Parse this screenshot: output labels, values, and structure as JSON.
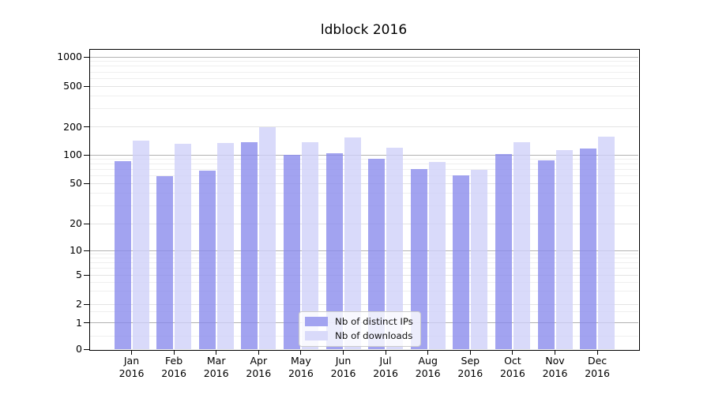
{
  "title": "ldblock 2016",
  "chart_data": {
    "type": "bar",
    "title": "ldblock 2016",
    "categories": [
      "Jan 2016",
      "Feb 2016",
      "Mar 2016",
      "Apr 2016",
      "May 2016",
      "Jun 2016",
      "Jul 2016",
      "Aug 2016",
      "Sep 2016",
      "Oct 2016",
      "Nov 2016",
      "Dec 2016"
    ],
    "series": [
      {
        "name": "Nb of distinct IPs",
        "color": "#a2a3f0",
        "values": [
          85,
          60,
          68,
          138,
          100,
          103,
          90,
          71,
          61,
          102,
          87,
          118
        ]
      },
      {
        "name": "Nb of downloads",
        "color": "#d9dafa",
        "values": [
          142,
          131,
          135,
          200,
          137,
          153,
          119,
          84,
          70,
          138,
          113,
          156
        ]
      }
    ],
    "xlabel": "",
    "ylabel": "",
    "y_ticks": [
      0,
      1,
      2,
      5,
      10,
      20,
      50,
      100,
      200,
      500,
      1000
    ],
    "yscale": "log-like (symlog)",
    "ylim": [
      0,
      1200
    ],
    "grid": "horizontal, log minor gridlines",
    "legend_position": "lower center inside plot"
  },
  "style": {
    "background": "#ffffff",
    "grid_decade_color": "#b2b2b2",
    "grid_major_color": "#e3e3e3",
    "grid_minor_color": "#efefef",
    "frame_color": "#000000"
  }
}
